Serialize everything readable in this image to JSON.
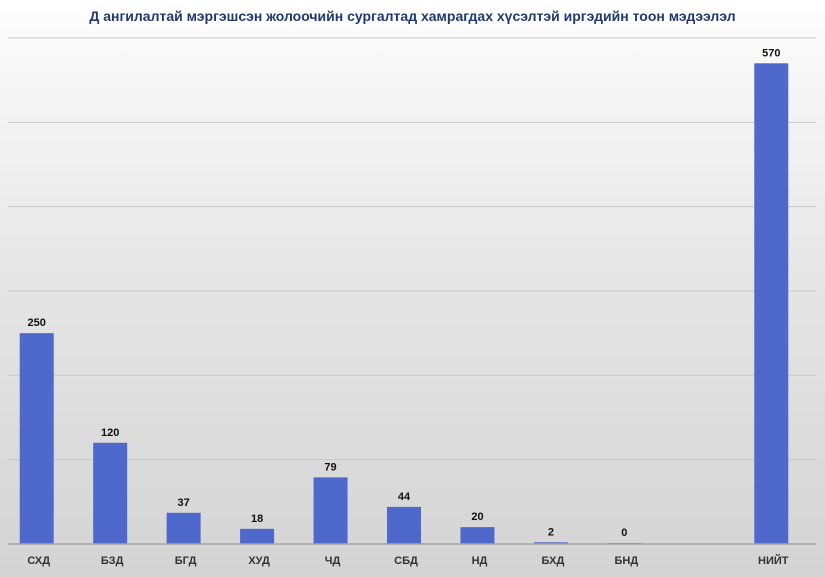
{
  "chart_data": {
    "type": "bar",
    "title": "Д ангилалтай мэргэшсэн жолоочийн сургалтад хамрагдах хүсэлтэй иргэдийн тоон мэдээлэл",
    "categories": [
      "СХД",
      "БЗД",
      "БГД",
      "ХУД",
      "ЧД",
      "СБД",
      "НД",
      "БХД",
      "БНД",
      "",
      "НИЙТ"
    ],
    "values": [
      250,
      120,
      37,
      18,
      79,
      44,
      20,
      2,
      0,
      null,
      570
    ],
    "data_labels": [
      "250",
      "120",
      "37",
      "18",
      "79",
      "44",
      "20",
      "2",
      "0",
      "",
      "570"
    ],
    "ylim": [
      0,
      600
    ],
    "grid": true,
    "legend": "none",
    "colors": {
      "bar": "#4f68cc",
      "grid": "#c8c8c8",
      "axis": "#a6a6a6",
      "title": "#1f3a6e"
    }
  }
}
